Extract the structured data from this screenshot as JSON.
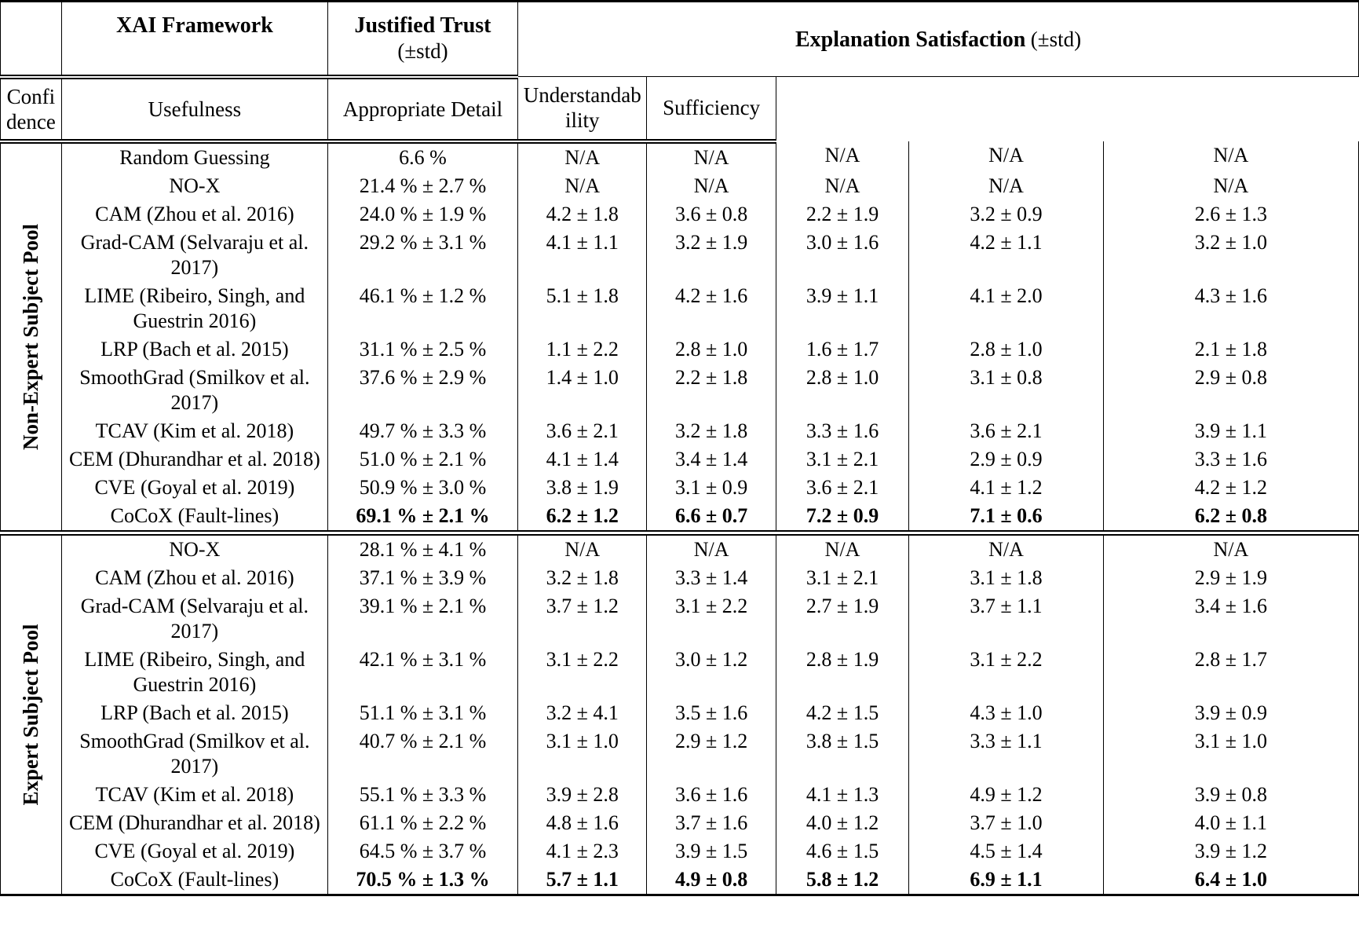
{
  "header": {
    "framework": "XAI Framework",
    "justified_trust": "Justified Trust",
    "pm_std": "(±std)",
    "satisfaction": "Explanation Satisfaction",
    "sub_columns": [
      "Confidence",
      "Usefulness",
      "Appropriate Detail",
      "Understandability",
      "Sufficiency"
    ]
  },
  "groups": [
    {
      "label": "Non-Expert Subject Pool",
      "rows": [
        {
          "framework": "Random Guessing",
          "trust": "6.6 %",
          "scores": [
            "N/A",
            "N/A",
            "N/A",
            "N/A",
            "N/A"
          ],
          "bold": false
        },
        {
          "framework": "NO-X",
          "trust": "21.4 % ± 2.7 %",
          "scores": [
            "N/A",
            "N/A",
            "N/A",
            "N/A",
            "N/A"
          ],
          "bold": false
        },
        {
          "framework": "CAM (Zhou et al. 2016)",
          "trust": "24.0 % ± 1.9 %",
          "scores": [
            "4.2 ± 1.8",
            "3.6 ± 0.8",
            "2.2 ± 1.9",
            "3.2 ± 0.9",
            "2.6 ± 1.3"
          ],
          "bold": false
        },
        {
          "framework": "Grad-CAM (Selvaraju et al. 2017)",
          "trust": "29.2 % ± 3.1 %",
          "scores": [
            "4.1 ± 1.1",
            "3.2 ± 1.9",
            "3.0 ± 1.6",
            "4.2 ± 1.1",
            "3.2 ± 1.0"
          ],
          "bold": false
        },
        {
          "framework": "LIME (Ribeiro, Singh, and Guestrin 2016)",
          "trust": "46.1 % ± 1.2 %",
          "scores": [
            "5.1 ± 1.8",
            "4.2 ± 1.6",
            "3.9 ± 1.1",
            "4.1 ± 2.0",
            "4.3 ± 1.6"
          ],
          "bold": false
        },
        {
          "framework": "LRP (Bach et al. 2015)",
          "trust": "31.1 % ± 2.5 %",
          "scores": [
            "1.1 ± 2.2",
            "2.8 ± 1.0",
            "1.6 ± 1.7",
            "2.8 ± 1.0",
            "2.1 ± 1.8"
          ],
          "bold": false
        },
        {
          "framework": "SmoothGrad (Smilkov et al. 2017)",
          "trust": "37.6 % ± 2.9 %",
          "scores": [
            "1.4 ± 1.0",
            "2.2 ± 1.8",
            "2.8 ± 1.0",
            "3.1 ± 0.8",
            "2.9 ± 0.8"
          ],
          "bold": false
        },
        {
          "framework": "TCAV (Kim et al. 2018)",
          "trust": "49.7 % ± 3.3 %",
          "scores": [
            "3.6 ± 2.1",
            "3.2 ± 1.8",
            "3.3 ± 1.6",
            "3.6 ± 2.1",
            "3.9 ± 1.1"
          ],
          "bold": false
        },
        {
          "framework": "CEM (Dhurandhar et al. 2018)",
          "trust": "51.0 % ± 2.1 %",
          "scores": [
            "4.1 ± 1.4",
            "3.4 ± 1.4",
            "3.1 ± 2.1",
            "2.9 ± 0.9",
            "3.3 ± 1.6"
          ],
          "bold": false
        },
        {
          "framework": "CVE (Goyal et al. 2019)",
          "trust": "50.9 % ± 3.0 %",
          "scores": [
            "3.8 ± 1.9",
            "3.1 ± 0.9",
            "3.6 ± 2.1",
            "4.1 ± 1.2",
            "4.2 ± 1.2"
          ],
          "bold": false
        },
        {
          "framework": "CoCoX (Fault-lines)",
          "trust": "69.1 % ± 2.1 %",
          "scores": [
            "6.2 ± 1.2",
            "6.6 ± 0.7",
            "7.2 ± 0.9",
            "7.1 ± 0.6",
            "6.2 ± 0.8"
          ],
          "bold": true
        }
      ]
    },
    {
      "label": "Expert Subject Pool",
      "rows": [
        {
          "framework": "NO-X",
          "trust": "28.1 % ± 4.1 %",
          "scores": [
            "N/A",
            "N/A",
            "N/A",
            "N/A",
            "N/A"
          ],
          "bold": false
        },
        {
          "framework": "CAM (Zhou et al. 2016)",
          "trust": "37.1 % ± 3.9 %",
          "scores": [
            "3.2 ± 1.8",
            "3.3 ± 1.4",
            "3.1 ± 2.1",
            "3.1 ± 1.8",
            "2.9 ± 1.9"
          ],
          "bold": false
        },
        {
          "framework": "Grad-CAM (Selvaraju et al. 2017)",
          "trust": "39.1 % ± 2.1 %",
          "scores": [
            "3.7 ± 1.2",
            "3.1 ± 2.2",
            "2.7 ± 1.9",
            "3.7 ± 1.1",
            "3.4 ± 1.6"
          ],
          "bold": false
        },
        {
          "framework": "LIME (Ribeiro, Singh, and Guestrin 2016)",
          "trust": "42.1 % ± 3.1 %",
          "scores": [
            "3.1 ± 2.2",
            "3.0 ± 1.2",
            "2.8 ± 1.9",
            "3.1 ± 2.2",
            "2.8 ± 1.7"
          ],
          "bold": false
        },
        {
          "framework": "LRP (Bach et al. 2015)",
          "trust": "51.1 % ± 3.1 %",
          "scores": [
            "3.2 ± 4.1",
            "3.5 ± 1.6",
            "4.2 ± 1.5",
            "4.3 ± 1.0",
            "3.9 ± 0.9"
          ],
          "bold": false
        },
        {
          "framework": "SmoothGrad (Smilkov et al. 2017)",
          "trust": "40.7 % ± 2.1 %",
          "scores": [
            "3.1 ± 1.0",
            "2.9 ± 1.2",
            "3.8 ± 1.5",
            "3.3 ± 1.1",
            "3.1 ± 1.0"
          ],
          "bold": false
        },
        {
          "framework": "TCAV (Kim et al. 2018)",
          "trust": "55.1 % ± 3.3 %",
          "scores": [
            "3.9 ± 2.8",
            "3.6 ± 1.6",
            "4.1 ± 1.3",
            "4.9 ± 1.2",
            "3.9 ± 0.8"
          ],
          "bold": false
        },
        {
          "framework": "CEM (Dhurandhar et al. 2018)",
          "trust": "61.1 % ± 2.2 %",
          "scores": [
            "4.8 ± 1.6",
            "3.7 ± 1.6",
            "4.0 ± 1.2",
            "3.7 ± 1.0",
            "4.0 ± 1.1"
          ],
          "bold": false
        },
        {
          "framework": "CVE (Goyal et al. 2019)",
          "trust": "64.5 % ± 3.7 %",
          "scores": [
            "4.1 ± 2.3",
            "3.9 ± 1.5",
            "4.6 ± 1.5",
            "4.5 ± 1.4",
            "3.9 ± 1.2"
          ],
          "bold": false
        },
        {
          "framework": "CoCoX (Fault-lines)",
          "trust": "70.5 % ± 1.3 %",
          "scores": [
            "5.7 ± 1.1",
            "4.9 ± 0.8",
            "5.8 ± 1.2",
            "6.9 ± 1.1",
            "6.4 ± 1.0"
          ],
          "bold": true
        }
      ]
    }
  ]
}
